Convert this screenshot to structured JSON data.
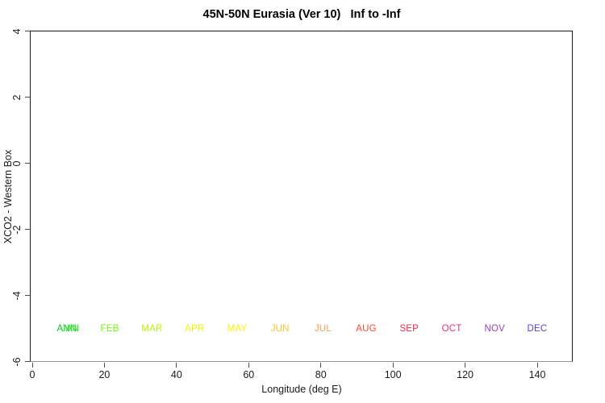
{
  "chart_data": {
    "type": "scatter",
    "title": "45N-50N Eurasia (Ver 10)   Inf to -Inf",
    "xlabel": "Longitude (deg E)",
    "ylabel": "XCO2 - Western Box",
    "xlim": [
      0,
      150
    ],
    "ylim": [
      -6,
      4
    ],
    "x_ticks": [
      0,
      20,
      40,
      60,
      80,
      100,
      120,
      140
    ],
    "y_ticks": [
      4,
      2,
      0,
      -2,
      -4,
      -6
    ],
    "grid": false,
    "legend": "none",
    "series": [],
    "annotations": [
      {
        "label": "ANN",
        "x": 9.6,
        "y": -5,
        "color": "#00cc22"
      },
      {
        "label": "JAN",
        "x": 10.5,
        "y": -5,
        "color": "#22ee11"
      },
      {
        "label": "FEB",
        "x": 21.5,
        "y": -5,
        "color": "#77f500"
      },
      {
        "label": "MAR",
        "x": 33.2,
        "y": -5,
        "color": "#b8f500"
      },
      {
        "label": "APR",
        "x": 45.0,
        "y": -5,
        "color": "#eef500"
      },
      {
        "label": "MAY",
        "x": 56.8,
        "y": -5,
        "color": "#fff200"
      },
      {
        "label": "JUN",
        "x": 68.7,
        "y": -5,
        "color": "#ffc229"
      },
      {
        "label": "JUL",
        "x": 80.6,
        "y": -5,
        "color": "#ff9c52"
      },
      {
        "label": "AUG",
        "x": 92.6,
        "y": -5,
        "color": "#ff4233"
      },
      {
        "label": "SEP",
        "x": 104.5,
        "y": -5,
        "color": "#f52948"
      },
      {
        "label": "OCT",
        "x": 116.3,
        "y": -5,
        "color": "#e03380"
      },
      {
        "label": "NOV",
        "x": 128.2,
        "y": -5,
        "color": "#9c3dc4"
      },
      {
        "label": "DEC",
        "x": 140.0,
        "y": -5,
        "color": "#5542d9"
      }
    ]
  }
}
